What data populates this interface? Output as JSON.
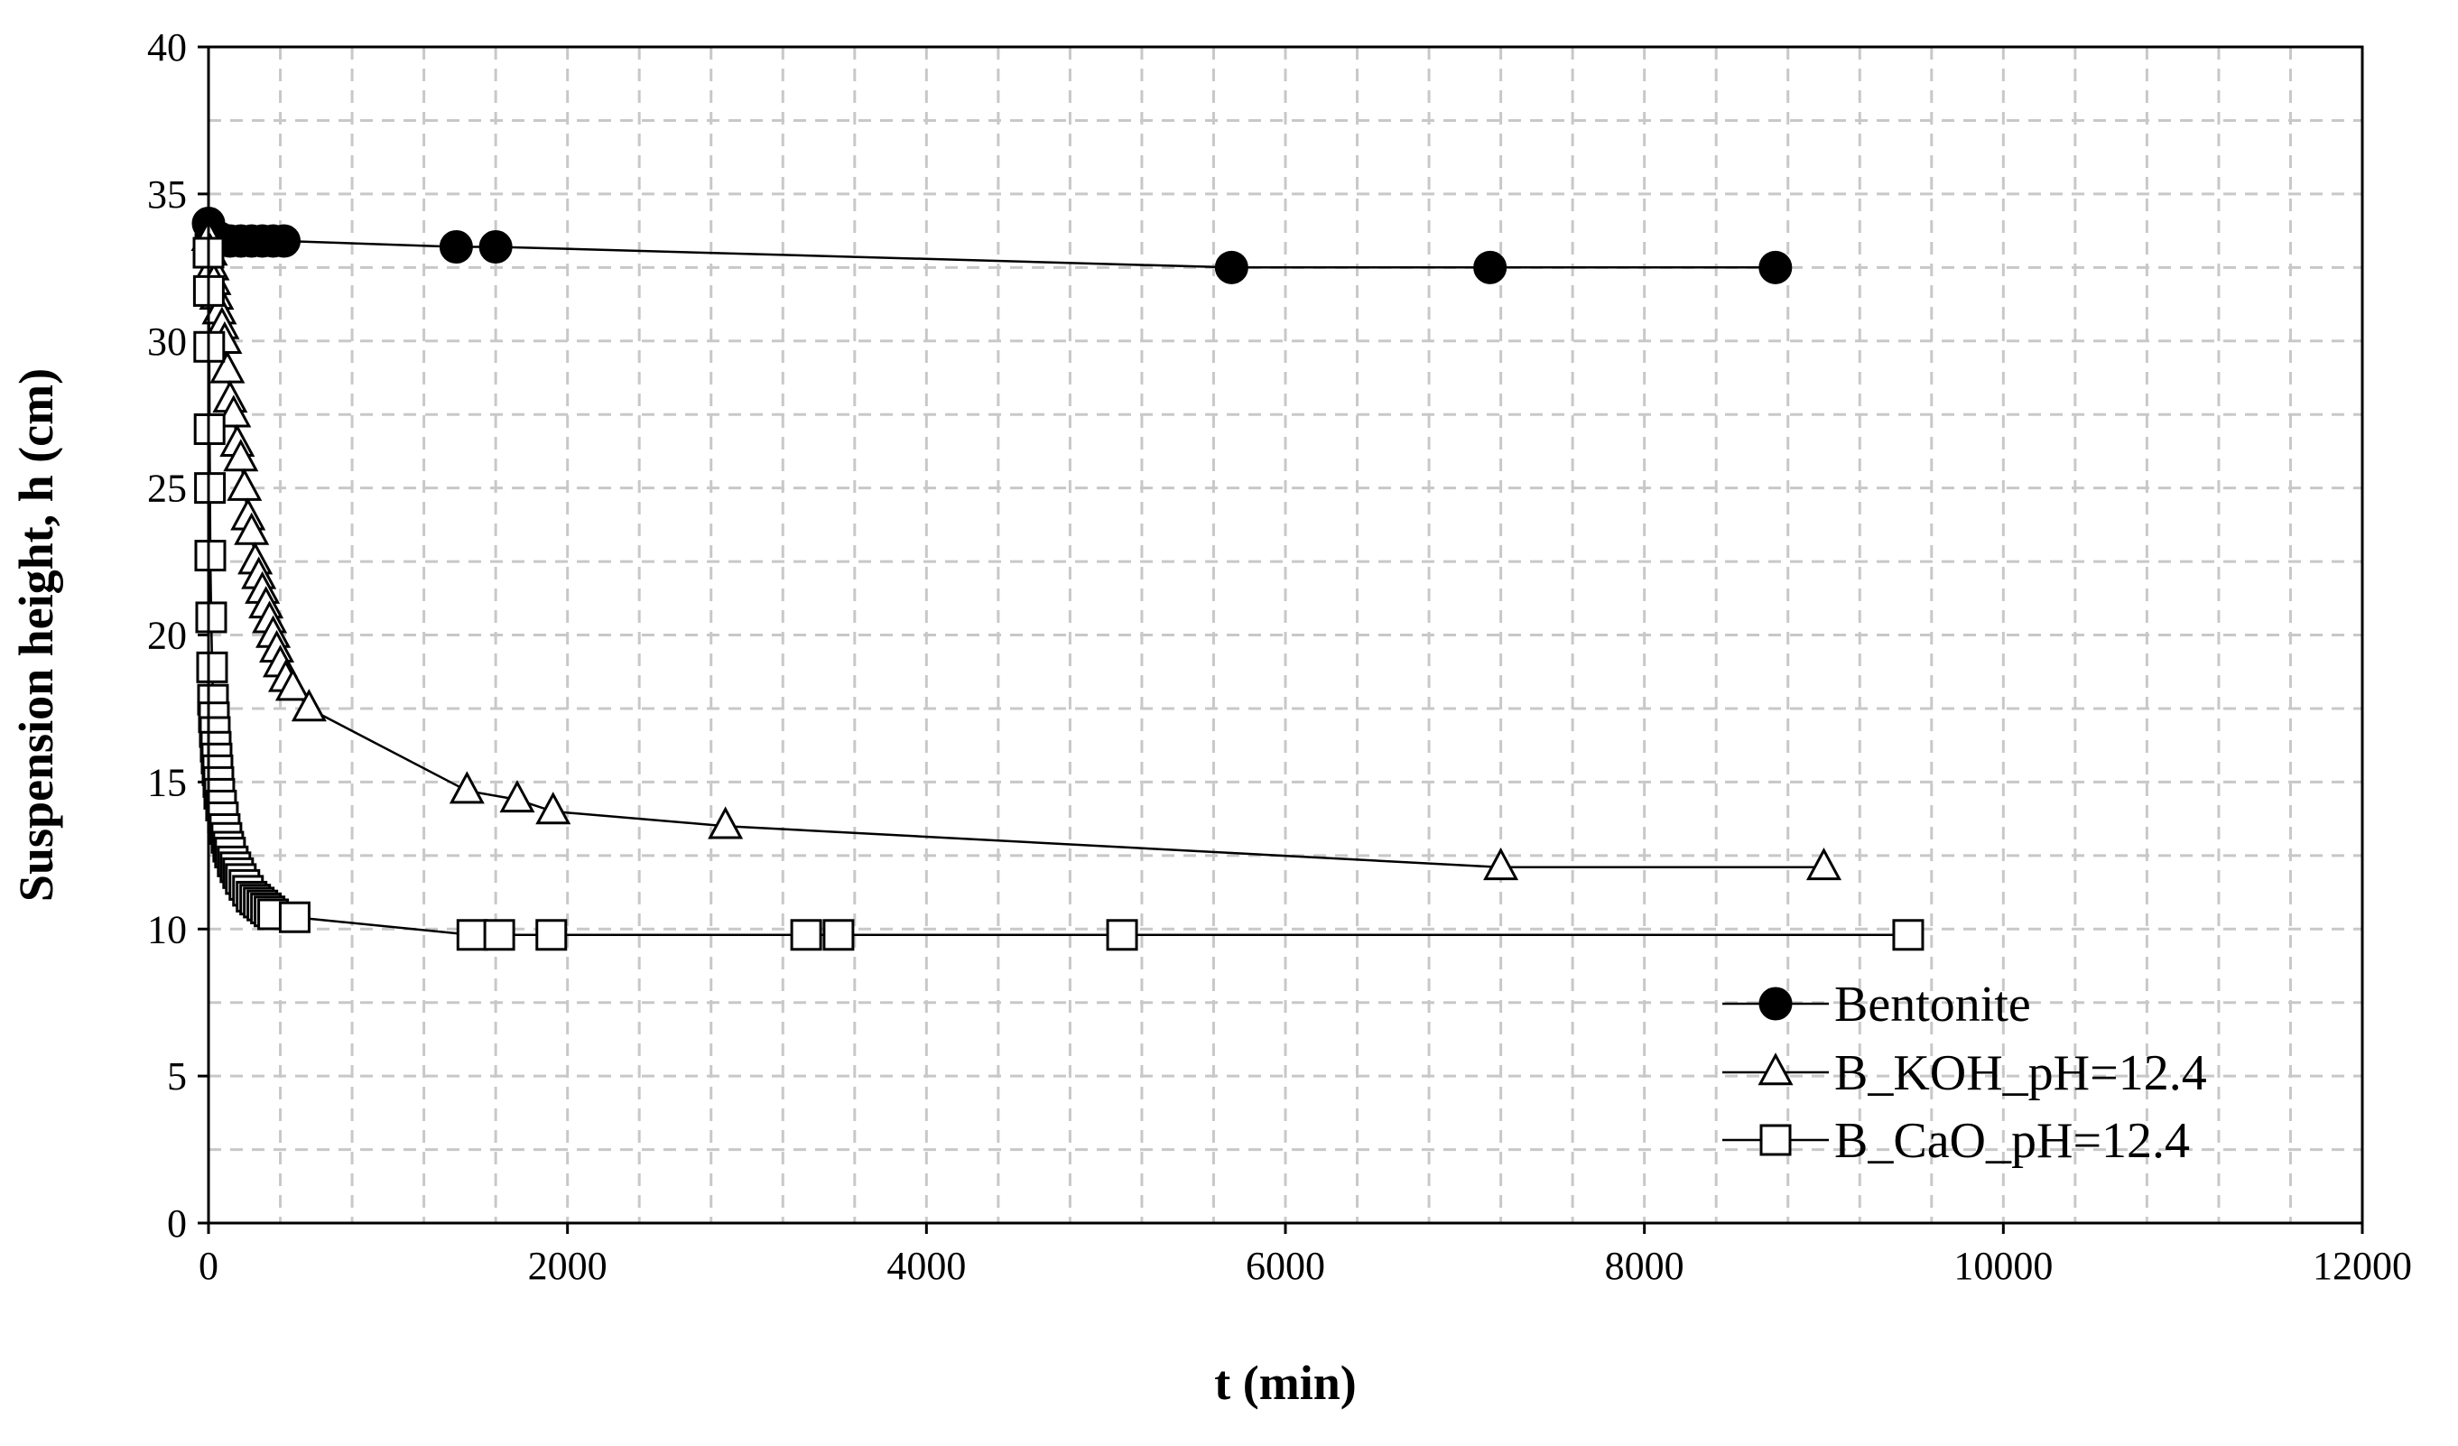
{
  "chart_data": {
    "type": "scatter",
    "xlabel": "t (min)",
    "ylabel": "Suspension height, h  (cm)",
    "xlim": [
      0,
      12000
    ],
    "ylim": [
      0,
      40
    ],
    "xticks": [
      0,
      2000,
      4000,
      6000,
      8000,
      10000,
      12000
    ],
    "yticks": [
      0,
      5,
      10,
      15,
      20,
      25,
      30,
      35,
      40
    ],
    "xtick_labels": [
      "0",
      "2000",
      "4000",
      "6000",
      "8000",
      "10000",
      "12000"
    ],
    "ytick_labels": [
      "0",
      "5",
      "10",
      "15",
      "20",
      "25",
      "30",
      "35",
      "40"
    ],
    "grid": true,
    "legend_position": "bottom-right",
    "series": [
      {
        "name": "Bentonite",
        "marker": "circle-filled",
        "x": [
          0,
          15,
          30,
          60,
          120,
          180,
          240,
          300,
          360,
          420,
          1380,
          1600,
          5700,
          7140,
          8730
        ],
        "y": [
          34.0,
          33.6,
          33.5,
          33.5,
          33.4,
          33.4,
          33.4,
          33.4,
          33.4,
          33.4,
          33.2,
          33.2,
          32.5,
          32.5,
          32.5
        ]
      },
      {
        "name": "B_KOH_pH=12.4",
        "marker": "triangle-open",
        "x": [
          0,
          10,
          20,
          30,
          45,
          60,
          75,
          90,
          105,
          120,
          140,
          160,
          180,
          200,
          220,
          240,
          260,
          280,
          300,
          320,
          340,
          360,
          380,
          400,
          430,
          470,
          560,
          1440,
          1720,
          1920,
          2880,
          7200,
          9000
        ],
        "y": [
          33.5,
          33.0,
          32.5,
          32.0,
          31.5,
          31.0,
          30.5,
          30.0,
          29.0,
          28.0,
          27.5,
          26.5,
          26.0,
          25.0,
          24.0,
          23.5,
          22.5,
          22.0,
          21.5,
          21.0,
          20.5,
          20.0,
          19.5,
          19.0,
          18.5,
          18.2,
          17.5,
          14.7,
          14.4,
          14.0,
          13.5,
          12.1,
          12.1
        ]
      },
      {
        "name": "B_CaO_pH=12.4",
        "marker": "square-open",
        "x": [
          0,
          2,
          4,
          6,
          8,
          10,
          15,
          20,
          25,
          30,
          35,
          40,
          45,
          50,
          55,
          60,
          70,
          80,
          90,
          100,
          110,
          120,
          135,
          150,
          165,
          180,
          200,
          220,
          240,
          260,
          280,
          300,
          320,
          340,
          360,
          480,
          1470,
          1620,
          1910,
          3330,
          3510,
          5090,
          9470
        ],
        "y": [
          33.0,
          31.7,
          29.8,
          27.0,
          25.0,
          22.7,
          20.6,
          18.9,
          17.8,
          17.2,
          16.7,
          16.2,
          15.8,
          15.4,
          15.0,
          14.6,
          14.2,
          13.8,
          13.4,
          13.1,
          12.8,
          12.6,
          12.3,
          12.1,
          11.9,
          11.7,
          11.5,
          11.3,
          11.1,
          11.0,
          10.9,
          10.8,
          10.7,
          10.6,
          10.5,
          10.4,
          9.8,
          9.8,
          9.8,
          9.8,
          9.8,
          9.8,
          9.8
        ]
      }
    ]
  }
}
